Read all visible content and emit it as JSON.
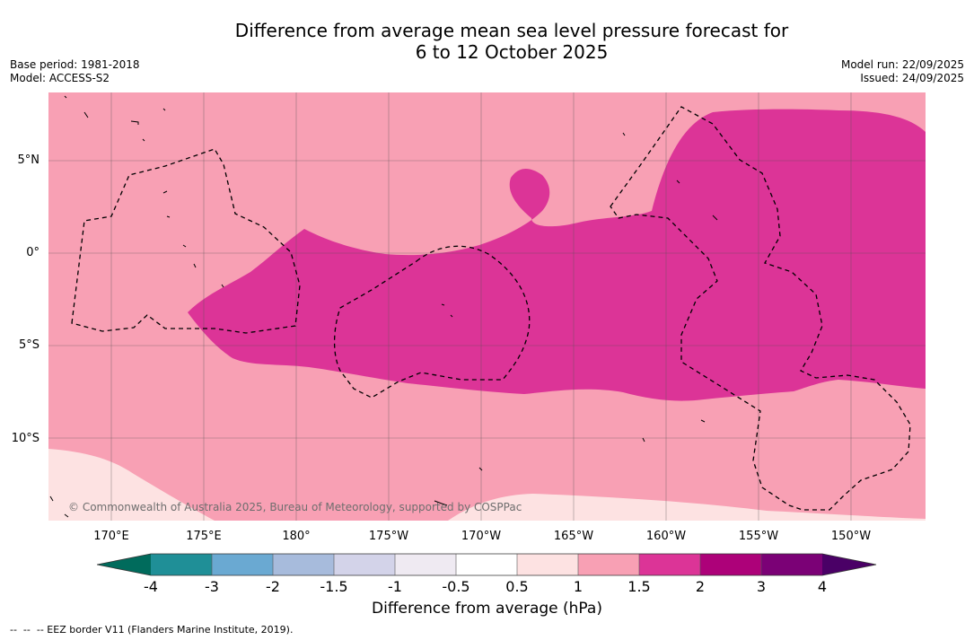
{
  "title_line1": "Difference from average mean sea level pressure forecast for",
  "title_line2": "6 to 12 October 2025",
  "base_period": "Base period: 1981-2018",
  "model": "Model: ACCESS-S2",
  "model_run": "Model run: 22/09/2025",
  "issued": "Issued: 24/09/2025",
  "copyright": "© Commonwealth of Australia 2025, Bureau of Meteorology, supported by COSPPac",
  "lat_labels": [
    "5°N",
    "0°",
    "5°S",
    "10°S"
  ],
  "lon_labels": [
    "170°E",
    "175°E",
    "180°",
    "175°W",
    "170°W",
    "165°W",
    "160°W",
    "155°W",
    "150°W"
  ],
  "colorbar": {
    "ticks": [
      "-4",
      "-3",
      "-2",
      "-1.5",
      "-1",
      "-0.5",
      "0.5",
      "1",
      "1.5",
      "2",
      "3",
      "4"
    ],
    "colors": {
      "below_min": "#006b5c",
      "-4_-3": "#1f8f97",
      "-3_-2": "#6aa9d2",
      "-2_-1.5": "#a7bbdc",
      "-1.5_-1": "#d3d3e9",
      "-1_-0.5": "#efeaf2",
      "-0.5_0.5": "#ffffff",
      "0.5_1": "#fde2e2",
      "1_1.5": "#f8a0b4",
      "1.5_2": "#dc3497",
      "2_3": "#ad0179",
      "3_4": "#7b0176",
      "above_max": "#4a0066"
    },
    "label": "Difference from average (hPa)"
  },
  "legend_eez": "--  --  -- EEZ border V11 (Flanders Marine Institute, 2019)."
}
